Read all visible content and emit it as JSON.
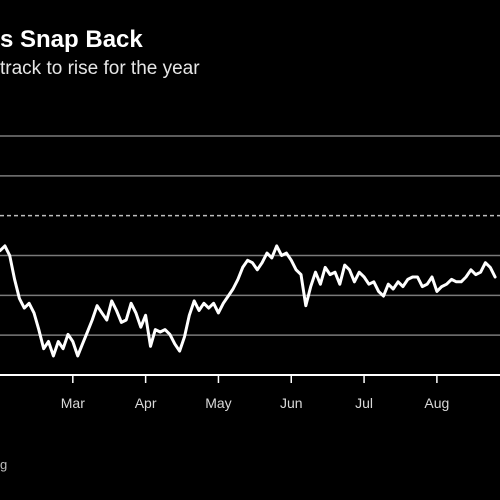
{
  "header": {
    "title": "s Snap Back",
    "subtitle": "track to rise for the year"
  },
  "footer": {
    "source": "g"
  },
  "chart_data": {
    "type": "line",
    "title": "s Snap Back",
    "subtitle": "track to rise for the year",
    "xlabel": "",
    "ylabel": "",
    "x_tick_labels": [
      "Mar",
      "Apr",
      "May",
      "Jun",
      "Jul",
      "Aug"
    ],
    "x_tick_positions": [
      30,
      60,
      90,
      120,
      150,
      180
    ],
    "xlim": [
      0,
      206
    ],
    "ylim": [
      0,
      100
    ],
    "gridlines": [
      16.7,
      33.3,
      50,
      66.7,
      83.3
    ],
    "reference_line": 66.7,
    "grid": true,
    "legend": "none",
    "series": [
      {
        "name": "",
        "x": [
          0,
          2,
          4,
          6,
          8,
          10,
          12,
          14,
          16,
          18,
          20,
          22,
          24,
          26,
          28,
          30,
          32,
          34,
          36,
          38,
          40,
          42,
          44,
          46,
          48,
          50,
          52,
          54,
          56,
          58,
          60,
          62,
          64,
          66,
          68,
          70,
          72,
          74,
          76,
          78,
          80,
          82,
          84,
          86,
          88,
          90,
          92,
          94,
          96,
          98,
          100,
          102,
          104,
          106,
          108,
          110,
          112,
          114,
          116,
          118,
          120,
          122,
          124,
          126,
          128,
          130,
          132,
          134,
          136,
          138,
          140,
          142,
          144,
          146,
          148,
          150,
          152,
          154,
          156,
          158,
          160,
          162,
          164,
          166,
          168,
          170,
          172,
          174,
          176,
          178,
          180,
          182,
          184,
          186,
          188,
          190,
          192,
          194,
          196,
          198,
          200,
          202,
          204
        ],
        "values": [
          52,
          54,
          50,
          40,
          32,
          28,
          30,
          26,
          19,
          11,
          14,
          8,
          14,
          11,
          17,
          14,
          8,
          13,
          18,
          23,
          29,
          26,
          23,
          31,
          27,
          22,
          23,
          30,
          26,
          20,
          25,
          12,
          19,
          18,
          19,
          17,
          13,
          10,
          16,
          25,
          31,
          27,
          30,
          28,
          30,
          26,
          30,
          33,
          36,
          40,
          45,
          48,
          47,
          44,
          47,
          51,
          49,
          54,
          50,
          51,
          48,
          44,
          42,
          29,
          37,
          43,
          38,
          45,
          42,
          43,
          38,
          46,
          44,
          39,
          43,
          41,
          38,
          39,
          35,
          33,
          38,
          36,
          39,
          37,
          40,
          41,
          41,
          37,
          38,
          41,
          35,
          37,
          38,
          40,
          39,
          39,
          41,
          44,
          42,
          43,
          47,
          45,
          41
        ]
      }
    ]
  }
}
